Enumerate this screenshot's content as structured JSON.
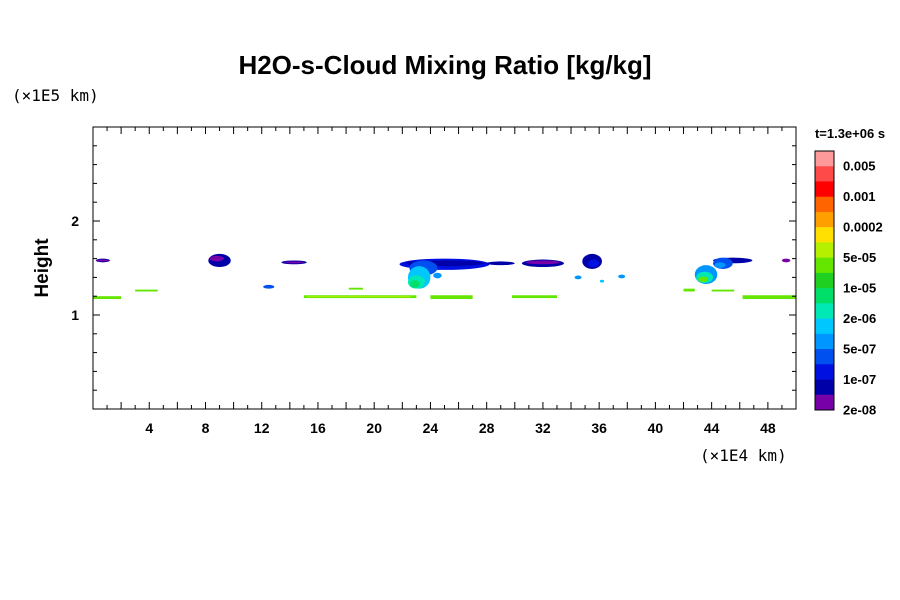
{
  "chart_data": {
    "type": "heatmap",
    "title": "H2O-s-Cloud Mixing Ratio [kg/kg]",
    "ylabel": "Height",
    "xlabel": "",
    "x_unit_label": "(×1E4 km)",
    "y_unit_label": "(×1E5 km)",
    "time_label": "t=1.3e+06 s",
    "xlim": [
      0,
      50
    ],
    "ylim": [
      0,
      3
    ],
    "x_ticks": [
      4,
      8,
      12,
      16,
      20,
      24,
      28,
      32,
      36,
      40,
      44,
      48
    ],
    "y_ticks": [
      1,
      2
    ],
    "colorbar": {
      "labels": [
        "0.005",
        "0.001",
        "0.0002",
        "5e-05",
        "1e-05",
        "2e-06",
        "5e-07",
        "1e-07",
        "2e-08"
      ],
      "colors_top_to_bottom": [
        "#ff9a9a",
        "#ff4a4a",
        "#ff0000",
        "#ff6400",
        "#ffa000",
        "#ffe000",
        "#b4f000",
        "#64e600",
        "#20d020",
        "#00e068",
        "#00e8b4",
        "#00c8ff",
        "#0096ff",
        "#0050f0",
        "#0010e0",
        "#0000a8",
        "#7800a8"
      ]
    },
    "regions": [
      {
        "shape": "ellipse",
        "cx": 0.7,
        "cy": 1.58,
        "rx": 0.5,
        "ry": 0.02,
        "color": "#0000a8"
      },
      {
        "shape": "ellipse",
        "cx": 0.7,
        "cy": 1.58,
        "rx": 0.5,
        "ry": 0.01,
        "color": "#7800a8"
      },
      {
        "shape": "ellipse",
        "cx": 9.0,
        "cy": 1.58,
        "rx": 0.8,
        "ry": 0.07,
        "color": "#0000a8"
      },
      {
        "shape": "ellipse",
        "cx": 8.8,
        "cy": 1.6,
        "rx": 0.5,
        "ry": 0.03,
        "color": "#7800a8"
      },
      {
        "shape": "ellipse",
        "cx": 14.3,
        "cy": 1.56,
        "rx": 0.9,
        "ry": 0.02,
        "color": "#0000a8"
      },
      {
        "shape": "ellipse",
        "cx": 14.3,
        "cy": 1.56,
        "rx": 0.7,
        "ry": 0.01,
        "color": "#7800a8"
      },
      {
        "shape": "ellipse",
        "cx": 12.5,
        "cy": 1.3,
        "rx": 0.4,
        "ry": 0.02,
        "color": "#0050f0"
      },
      {
        "shape": "ellipse",
        "cx": 25.0,
        "cy": 1.54,
        "rx": 3.2,
        "ry": 0.06,
        "color": "#0010e0"
      },
      {
        "shape": "ellipse",
        "cx": 25.0,
        "cy": 1.55,
        "rx": 2.8,
        "ry": 0.03,
        "color": "#0000a8"
      },
      {
        "shape": "ellipse",
        "cx": 23.5,
        "cy": 1.5,
        "rx": 1.0,
        "ry": 0.08,
        "color": "#0050f0"
      },
      {
        "shape": "ellipse",
        "cx": 23.2,
        "cy": 1.4,
        "rx": 0.8,
        "ry": 0.12,
        "color": "#00c8ff"
      },
      {
        "shape": "ellipse",
        "cx": 23.0,
        "cy": 1.35,
        "rx": 0.6,
        "ry": 0.07,
        "color": "#00e8b4"
      },
      {
        "shape": "ellipse",
        "cx": 22.9,
        "cy": 1.33,
        "rx": 0.35,
        "ry": 0.04,
        "color": "#00e068"
      },
      {
        "shape": "ellipse",
        "cx": 29.0,
        "cy": 1.55,
        "rx": 1.0,
        "ry": 0.02,
        "color": "#0000a8"
      },
      {
        "shape": "ellipse",
        "cx": 32.0,
        "cy": 1.55,
        "rx": 1.5,
        "ry": 0.04,
        "color": "#0000a8"
      },
      {
        "shape": "ellipse",
        "cx": 32.0,
        "cy": 1.56,
        "rx": 1.2,
        "ry": 0.02,
        "color": "#7800a8"
      },
      {
        "shape": "ellipse",
        "cx": 35.5,
        "cy": 1.57,
        "rx": 0.7,
        "ry": 0.08,
        "color": "#0000a8"
      },
      {
        "shape": "ellipse",
        "cx": 35.6,
        "cy": 1.55,
        "rx": 0.4,
        "ry": 0.04,
        "color": "#0010e0"
      },
      {
        "shape": "ellipse",
        "cx": 24.5,
        "cy": 1.42,
        "rx": 0.3,
        "ry": 0.03,
        "color": "#0096ff"
      },
      {
        "shape": "ellipse",
        "cx": 34.5,
        "cy": 1.4,
        "rx": 0.25,
        "ry": 0.02,
        "color": "#0096ff"
      },
      {
        "shape": "ellipse",
        "cx": 37.6,
        "cy": 1.41,
        "rx": 0.25,
        "ry": 0.02,
        "color": "#0096ff"
      },
      {
        "shape": "ellipse",
        "cx": 36.2,
        "cy": 1.36,
        "rx": 0.15,
        "ry": 0.015,
        "color": "#00c8ff"
      },
      {
        "shape": "ellipse",
        "cx": 45.5,
        "cy": 1.58,
        "rx": 1.4,
        "ry": 0.03,
        "color": "#0000a8"
      },
      {
        "shape": "ellipse",
        "cx": 44.8,
        "cy": 1.55,
        "rx": 0.7,
        "ry": 0.06,
        "color": "#0050f0"
      },
      {
        "shape": "ellipse",
        "cx": 44.6,
        "cy": 1.53,
        "rx": 0.4,
        "ry": 0.03,
        "color": "#0096ff"
      },
      {
        "shape": "ellipse",
        "cx": 43.6,
        "cy": 1.43,
        "rx": 0.8,
        "ry": 0.1,
        "color": "#0096ff"
      },
      {
        "shape": "ellipse",
        "cx": 43.5,
        "cy": 1.4,
        "rx": 0.6,
        "ry": 0.06,
        "color": "#00e8b4"
      },
      {
        "shape": "ellipse",
        "cx": 43.4,
        "cy": 1.38,
        "rx": 0.35,
        "ry": 0.03,
        "color": "#64e600"
      },
      {
        "shape": "ellipse",
        "cx": 49.3,
        "cy": 1.58,
        "rx": 0.3,
        "ry": 0.02,
        "color": "#7800a8"
      },
      {
        "shape": "rect",
        "x0": 0.0,
        "x1": 2.0,
        "y0": 1.17,
        "y1": 1.2,
        "color": "#64e600"
      },
      {
        "shape": "rect",
        "x0": 3.0,
        "x1": 4.6,
        "y0": 1.25,
        "y1": 1.27,
        "color": "#64e600"
      },
      {
        "shape": "rect",
        "x0": 15.0,
        "x1": 23.0,
        "y0": 1.18,
        "y1": 1.21,
        "color": "#64e600"
      },
      {
        "shape": "rect",
        "x0": 15.2,
        "x1": 22.6,
        "y0": 1.19,
        "y1": 1.2,
        "color": "#b4f000"
      },
      {
        "shape": "rect",
        "x0": 18.2,
        "x1": 19.2,
        "y0": 1.27,
        "y1": 1.29,
        "color": "#64e600"
      },
      {
        "shape": "rect",
        "x0": 24.0,
        "x1": 27.0,
        "y0": 1.17,
        "y1": 1.21,
        "color": "#64e600"
      },
      {
        "shape": "rect",
        "x0": 29.8,
        "x1": 33.0,
        "y0": 1.18,
        "y1": 1.21,
        "color": "#64e600"
      },
      {
        "shape": "rect",
        "x0": 42.0,
        "x1": 42.8,
        "y0": 1.25,
        "y1": 1.28,
        "color": "#64e600"
      },
      {
        "shape": "rect",
        "x0": 44.0,
        "x1": 45.6,
        "y0": 1.25,
        "y1": 1.27,
        "color": "#64e600"
      },
      {
        "shape": "rect",
        "x0": 46.2,
        "x1": 50.0,
        "y0": 1.17,
        "y1": 1.21,
        "color": "#64e600"
      }
    ]
  }
}
